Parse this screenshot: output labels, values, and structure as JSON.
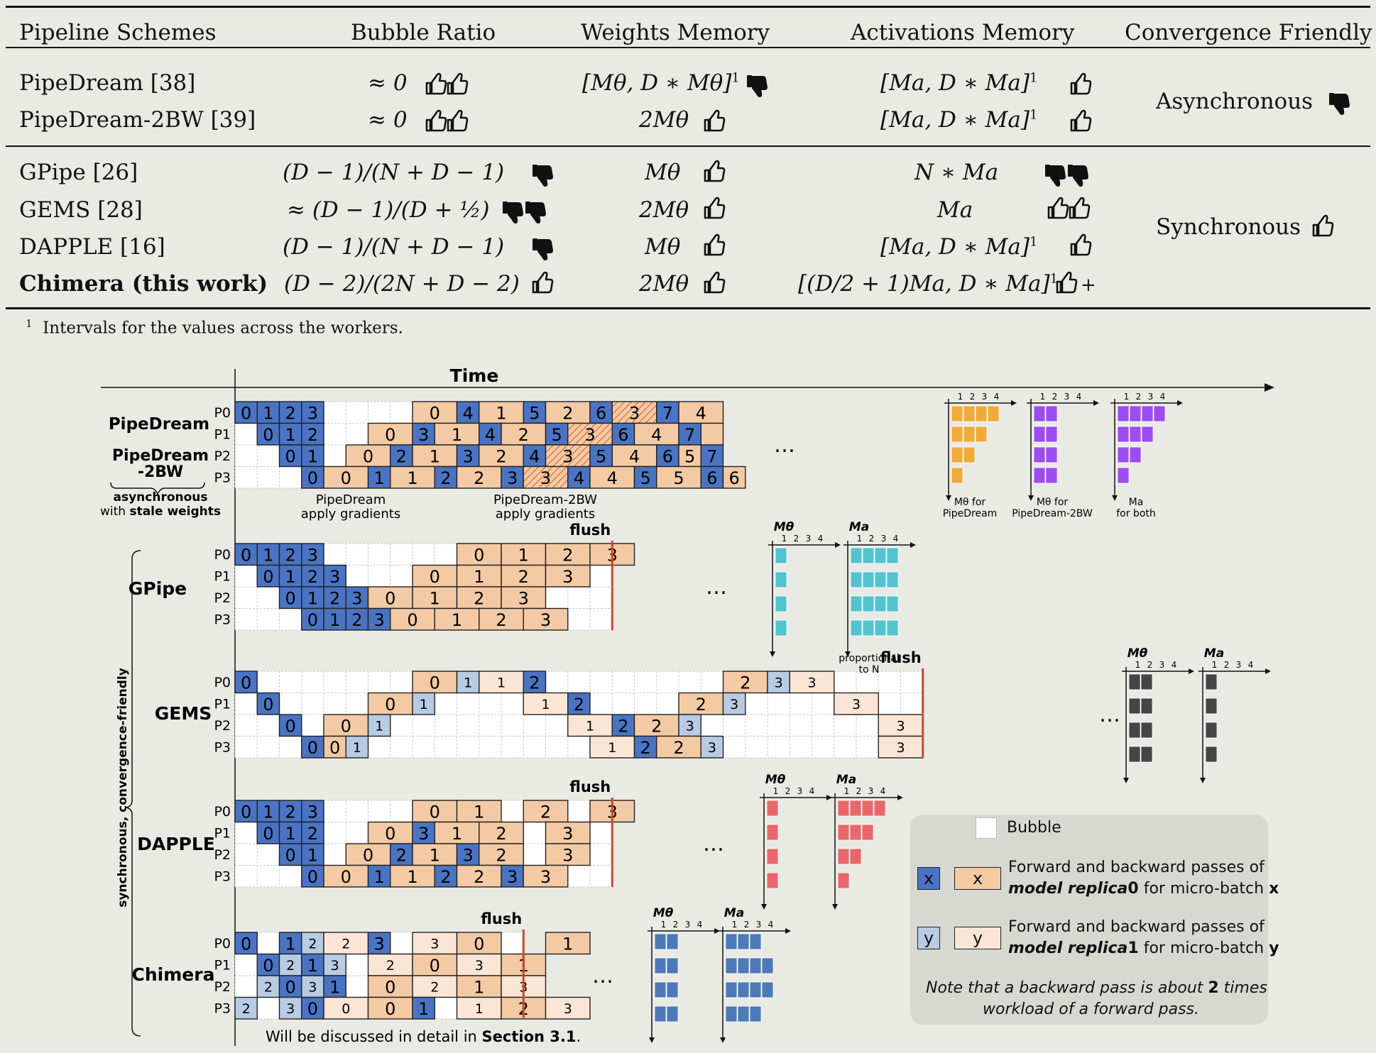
{
  "table": {
    "headers": [
      "Pipeline Schemes",
      "Bubble Ratio",
      "Weights Memory",
      "Activations Memory",
      "Convergence Friendly"
    ],
    "group1": [
      {
        "scheme": "PipeDream",
        "ref": "[38]",
        "bubble": "≈ 0",
        "weights": "[Mθ,  D ∗ Mθ]",
        "weights_sup": "1",
        "acts": "[Ma,  D ∗ Ma]",
        "acts_sup": "1"
      },
      {
        "scheme": "PipeDream-2BW",
        "ref": "[39]",
        "bubble": "≈ 0",
        "weights": "2Mθ",
        "weights_sup": "",
        "acts": "[Ma,  D ∗ Ma]",
        "acts_sup": "1"
      }
    ],
    "group1_convergence": "Asynchronous",
    "group2": [
      {
        "scheme": "GPipe",
        "ref": "[26]",
        "bubble": "(D − 1)/(N + D − 1)",
        "weights": "Mθ",
        "acts": "N ∗ Ma",
        "acts_sup": ""
      },
      {
        "scheme": "GEMS",
        "ref": "[28]",
        "bubble": "≈ (D − 1)/(D + ½)",
        "weights": "2Mθ",
        "acts": "Ma",
        "acts_sup": ""
      },
      {
        "scheme": "DAPPLE",
        "ref": "[16]",
        "bubble": "(D − 1)/(N + D − 1)",
        "weights": "Mθ",
        "acts": "[Ma,  D ∗ Ma]",
        "acts_sup": "1"
      },
      {
        "scheme": "Chimera (this work)",
        "ref": "",
        "bubble": "(D − 2)/(2N + D − 2)",
        "weights": "2Mθ",
        "acts": "[(D/2 + 1)Ma, D ∗ Ma]",
        "acts_sup": "1"
      }
    ],
    "group2_convergence": "Synchronous",
    "footnote_mark": "1",
    "footnote": "Intervals for the values across the workers."
  },
  "figure": {
    "time_label": "Time",
    "workers": [
      "P0",
      "P1",
      "P2",
      "P3"
    ],
    "ellipsis": "…",
    "flush": "flush",
    "async_label_1": "asynchronous",
    "async_label_2a": "with ",
    "async_label_2b": "stale weights",
    "sync_label": "synchronous,  convergence-friendly",
    "pd_apply_1": "PipeDream",
    "pd_apply_2": "apply gradients",
    "bw_apply_1": "PipeDream-2BW",
    "bw_apply_2": "apply gradients",
    "schemes": {
      "pipedream_1": "PipeDream",
      "pipedream_2a": "PipeDream",
      "pipedream_2b": "-2BW",
      "gpipe": "GPipe",
      "gems": "GEMS",
      "dapple": "DAPPLE",
      "chimera": "Chimera"
    },
    "axis_ticks": [
      "1",
      "2",
      "3",
      "4"
    ],
    "mem_labels": {
      "m_theta": "Mθ",
      "m_a": "Ma",
      "pd_w_1": "Mθ for",
      "pd_w_2": "PipeDream",
      "bw_w_1": "Mθ for",
      "bw_w_2": "PipeDream-2BW",
      "pd_a_1": "Ma",
      "pd_a_2": "for both",
      "gpipe_prop_1": "proportional",
      "gpipe_prop_2": "to N"
    },
    "bottom_note_a": "Will be discussed in detail in ",
    "bottom_note_b": "Section 3.1",
    "bottom_note_c": "."
  },
  "legend": {
    "bubble": "Bubble",
    "x": "x",
    "y": "y",
    "r0_line1": "Forward and backward passes of",
    "r0_line2a": "model replica",
    "r0_line2b": "0",
    "r0_line2c": " for micro-batch ",
    "r0_line2d": "x",
    "r1_line1": "Forward and backward passes of",
    "r1_line2a": "model replica",
    "r1_line2b": "1",
    "r1_line2c": " for micro-batch ",
    "r1_line2d": "y",
    "note_1a": "Note that a backward pass is about ",
    "note_1b": "2",
    "note_1c": " times",
    "note_2": "workload of a forward pass."
  },
  "colors": {
    "forward_replica0": "#4a74c3",
    "backward_replica0": "#f4caa4",
    "forward_replica1": "#b8cbe3",
    "backward_replica1": "#fbe6d6",
    "bubble": "#ffffff",
    "pipedream_mem": "#efab3a",
    "pipedream2bw_mem": "#9b4df0",
    "gpipe_mem": "#52c3cf",
    "gems_mem": "#454545",
    "dapple_mem": "#e8676a",
    "chimera_mem": "#4d79b8",
    "flush_line": "#c8482a"
  },
  "icons": [
    "thumbs-up-icon",
    "thumbs-down-icon"
  ]
}
